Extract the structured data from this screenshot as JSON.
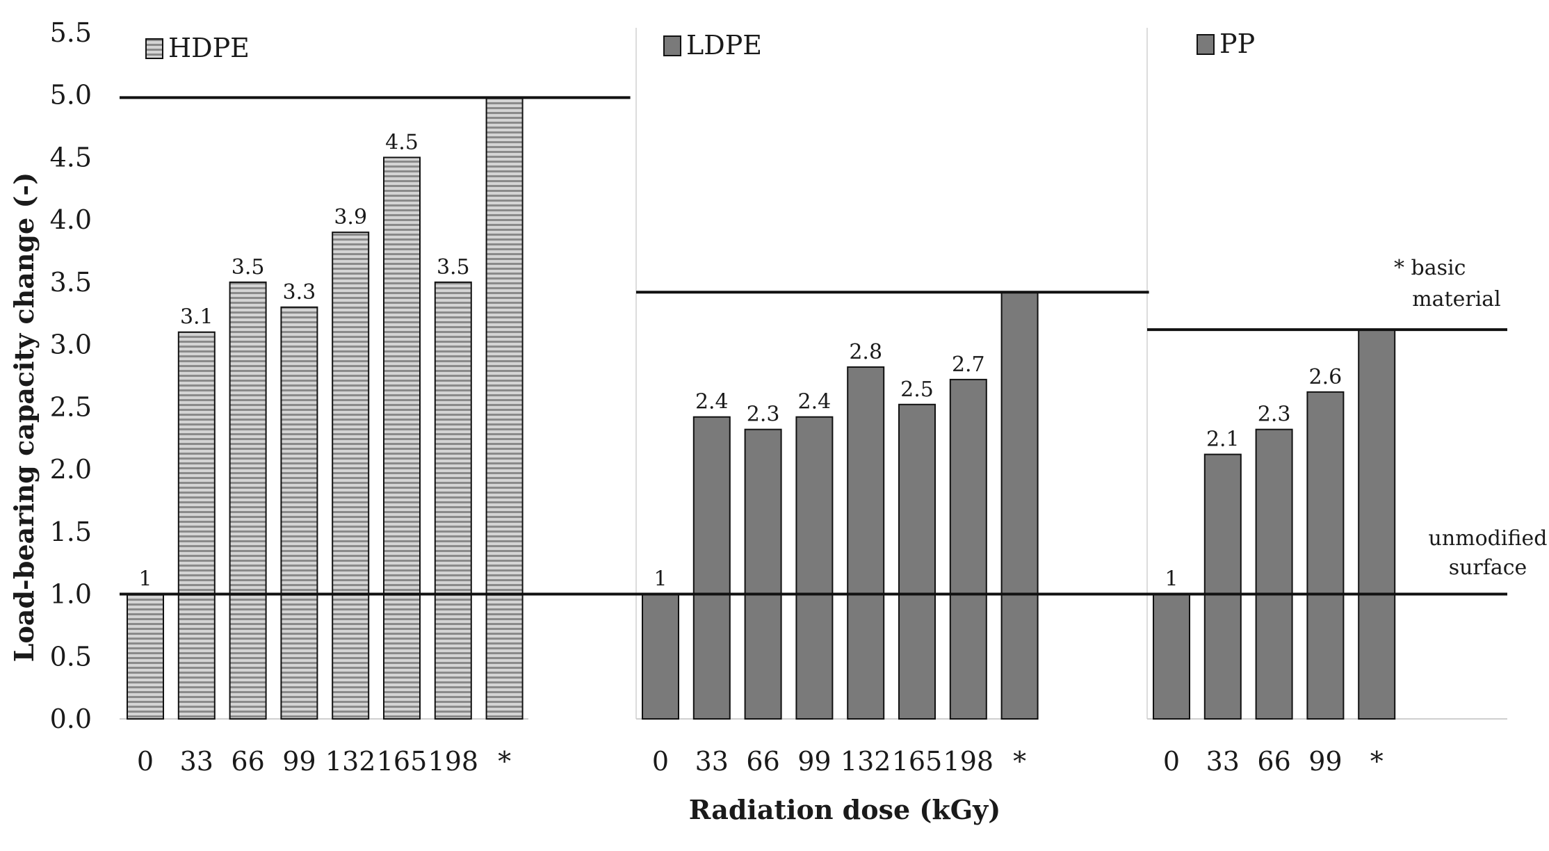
{
  "chart_data": {
    "type": "bar",
    "ylabel": "Load-bearing capacity change (-)",
    "xlabel": "Radiation dose (kGy)",
    "ylim": [
      0,
      5.5
    ],
    "yticks": [
      "0.0",
      "0.5",
      "1.0",
      "1.5",
      "2.0",
      "2.5",
      "3.0",
      "3.5",
      "4.0",
      "4.5",
      "5.0",
      "5.5"
    ],
    "reference_line": {
      "value": 1.0,
      "label_line1": "unmodified",
      "label_line2": "surface"
    },
    "basic_material_note": {
      "line1": "* basic",
      "line2": "material"
    },
    "colors": {
      "hdpe_fill": "#d4d4d4",
      "hdpe_stripe": "#8a8a8a",
      "solid_fill": "#7a7a7a",
      "stroke": "#111111"
    },
    "panels": [
      {
        "name": "HDPE",
        "pattern": "striped",
        "categories": [
          "0",
          "33",
          "66",
          "99",
          "132",
          "165",
          "198",
          "*"
        ],
        "values": [
          1,
          3.1,
          3.5,
          3.3,
          3.9,
          4.5,
          3.5,
          4.98
        ],
        "labels": [
          "1",
          "3.1",
          "3.5",
          "3.3",
          "3.9",
          "4.5",
          "3.5",
          ""
        ]
      },
      {
        "name": "LDPE",
        "pattern": "solid",
        "categories": [
          "0",
          "33",
          "66",
          "99",
          "132",
          "165",
          "198",
          "*"
        ],
        "values": [
          1,
          2.42,
          2.32,
          2.42,
          2.82,
          2.52,
          2.72,
          3.42
        ],
        "labels": [
          "1",
          "2.4",
          "2.3",
          "2.4",
          "2.8",
          "2.5",
          "2.7",
          ""
        ]
      },
      {
        "name": "PP",
        "pattern": "solid",
        "categories": [
          "0",
          "33",
          "66",
          "99",
          "*"
        ],
        "values": [
          1,
          2.12,
          2.32,
          2.62,
          3.12
        ],
        "labels": [
          "1",
          "2.1",
          "2.3",
          "2.6",
          ""
        ]
      }
    ]
  }
}
